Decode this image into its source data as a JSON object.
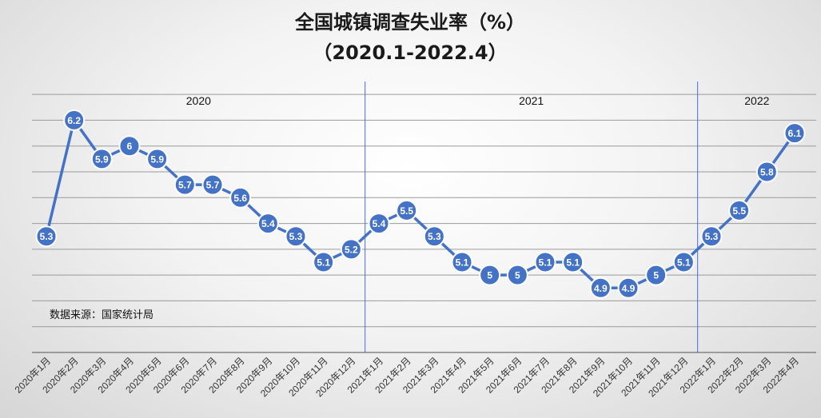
{
  "chart_data": {
    "type": "line",
    "title": "全国城镇调查失业率（%）",
    "subtitle": "（2020.1-2022.4）",
    "source": "数据来源：国家统计局",
    "year_groups": [
      {
        "label": "2020",
        "start": 0,
        "end": 11
      },
      {
        "label": "2021",
        "start": 12,
        "end": 23
      },
      {
        "label": "2022",
        "start": 24,
        "end": 27
      }
    ],
    "categories": [
      "2020年1月",
      "2020年2月",
      "2020年3月",
      "2020年4月",
      "2020年5月",
      "2020年6月",
      "2020年7月",
      "2020年8月",
      "2020年9月",
      "2020年10月",
      "2020年11月",
      "2020年12月",
      "2021年1月",
      "2021年2月",
      "2021年3月",
      "2021年4月",
      "2021年5月",
      "2021年6月",
      "2021年7月",
      "2021年8月",
      "2021年9月",
      "2021年10月",
      "2021年11月",
      "2021年12月",
      "2022年1月",
      "2022年2月",
      "2022年3月",
      "2022年4月"
    ],
    "series": [
      {
        "values": [
          5.3,
          6.2,
          5.9,
          6,
          5.9,
          5.7,
          5.7,
          5.6,
          5.4,
          5.3,
          5.1,
          5.2,
          5.4,
          5.5,
          5.3,
          5.1,
          5,
          5,
          5.1,
          5.1,
          4.9,
          4.9,
          5,
          5.1,
          5.3,
          5.5,
          5.8,
          6.1
        ],
        "color": "#4472c4"
      }
    ],
    "ylim": [
      4.4,
      6.5
    ],
    "grid": true,
    "axis_labels_visible": false
  }
}
